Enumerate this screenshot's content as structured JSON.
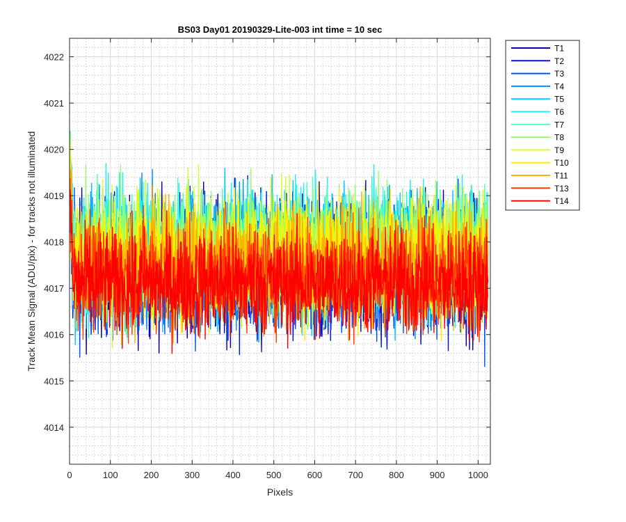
{
  "chart_data": {
    "type": "line",
    "title": "BS03 Day01 20190329-Lite-003 int time = 10 sec",
    "xlabel": "Pixels",
    "ylabel": "Track Mean Signal (ADU/pix) - for tracks not illuminated",
    "xlim": [
      0,
      1030
    ],
    "ylim": [
      4013.2,
      4022.4
    ],
    "xticks": [
      0,
      100,
      200,
      300,
      400,
      500,
      600,
      700,
      800,
      900,
      1000
    ],
    "yticks": [
      4014,
      4015,
      4016,
      4017,
      4018,
      4019,
      4020,
      4021,
      4022
    ],
    "grid": true,
    "minor_grid": true,
    "legend_position": "outside-top-right",
    "n_points": 1024,
    "series": [
      {
        "name": "T1",
        "color": "#0000ad",
        "mean": 4017.5,
        "spread": 1.05
      },
      {
        "name": "T2",
        "color": "#0016e0",
        "mean": 4017.4,
        "spread": 1.0
      },
      {
        "name": "T3",
        "color": "#0050ff",
        "mean": 4017.3,
        "spread": 0.95
      },
      {
        "name": "T4",
        "color": "#0090ff",
        "mean": 4017.6,
        "spread": 0.95
      },
      {
        "name": "T5",
        "color": "#00c8ff",
        "mean": 4017.7,
        "spread": 1.0
      },
      {
        "name": "T6",
        "color": "#20f0f0",
        "mean": 4017.8,
        "spread": 1.0
      },
      {
        "name": "T7",
        "color": "#50ffc0",
        "mean": 4017.8,
        "spread": 0.95
      },
      {
        "name": "T8",
        "color": "#90ff70",
        "mean": 4017.8,
        "spread": 0.95
      },
      {
        "name": "T9",
        "color": "#d0ff30",
        "mean": 4017.7,
        "spread": 0.95
      },
      {
        "name": "T10",
        "color": "#fff000",
        "mean": 4017.6,
        "spread": 0.95
      },
      {
        "name": "T11",
        "color": "#ffb000",
        "mean": 4017.5,
        "spread": 0.9
      },
      {
        "name": "T13",
        "color": "#ff4000",
        "mean": 4017.3,
        "spread": 0.85
      },
      {
        "name": "T14",
        "color": "#ff0000",
        "mean": 4017.1,
        "spread": 0.8
      }
    ]
  }
}
